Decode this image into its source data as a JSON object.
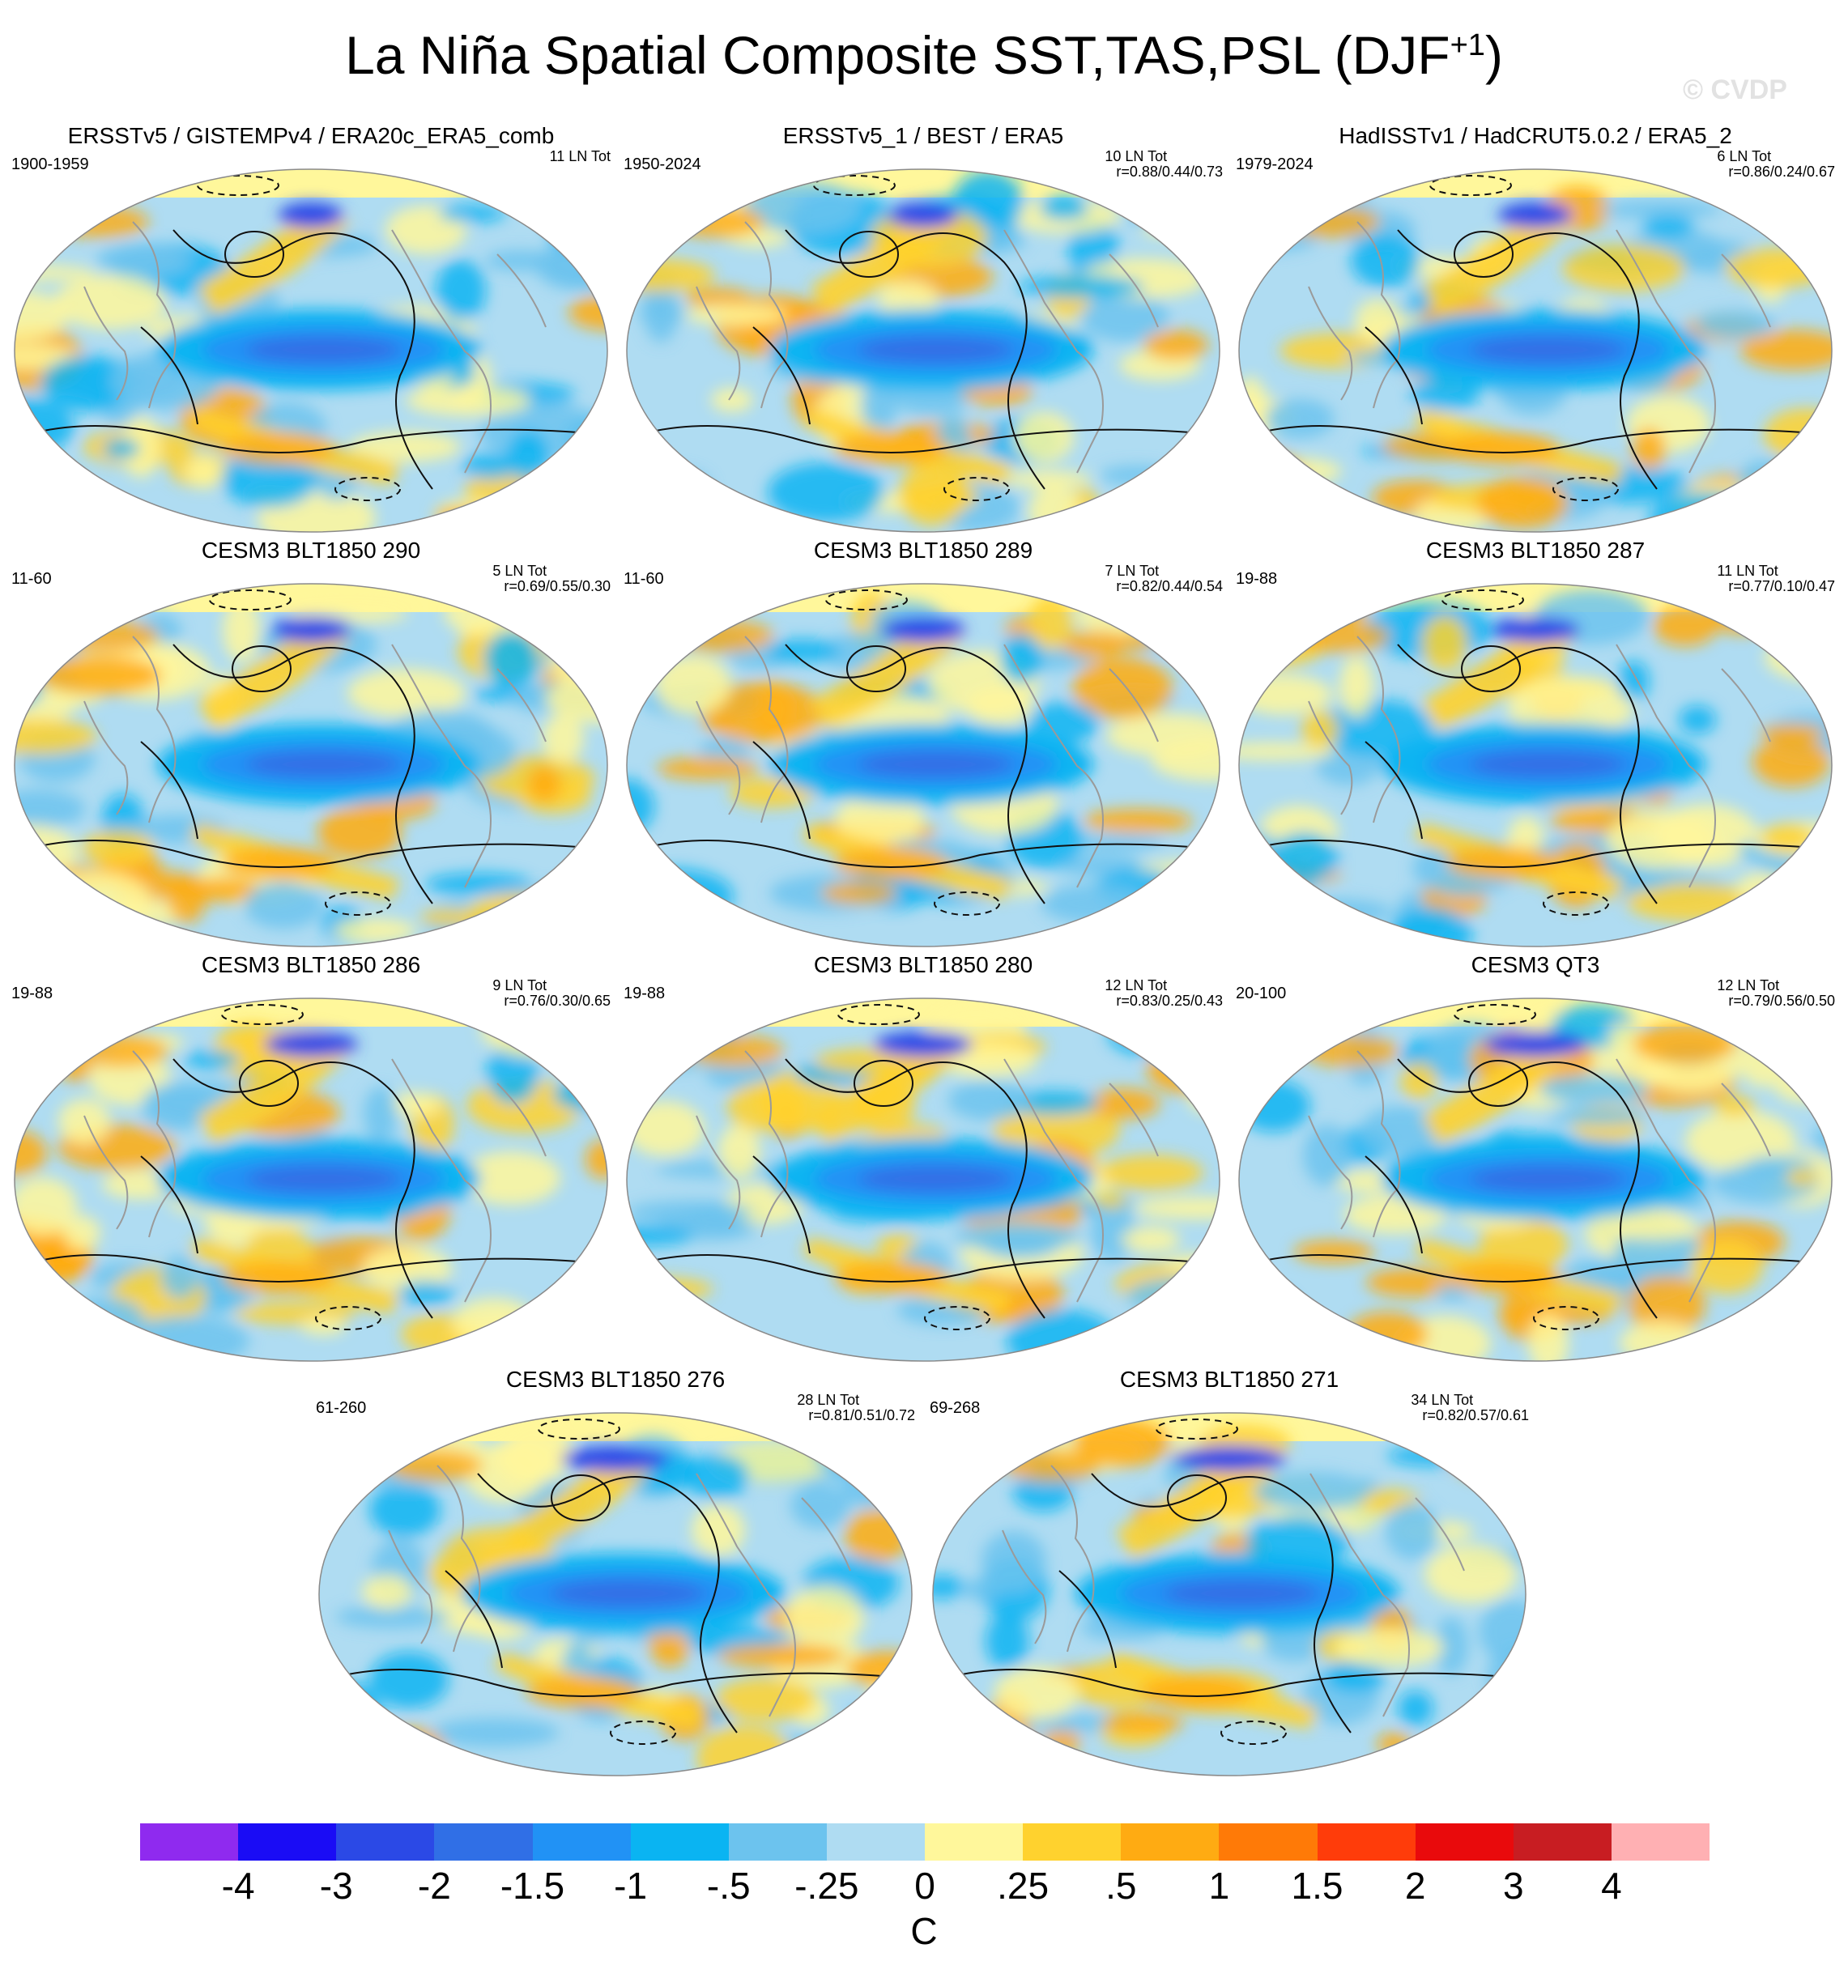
{
  "title": {
    "main": "La Niña Spatial Composite SST,TAS,PSL (DJF",
    "sup": "+1",
    "close": ")"
  },
  "watermark": "© CVDP",
  "panels": [
    {
      "title": "ERSSTv5 / GISTEMPv4 / ERA20c_ERA5_comb",
      "period": "1900-1959",
      "count": "11 LN Tot",
      "corr": ""
    },
    {
      "title": "ERSSTv5_1 / BEST / ERA5",
      "period": "1950-2024",
      "count": "10 LN Tot",
      "corr": "r=0.88/0.44/0.73"
    },
    {
      "title": "HadISSTv1 / HadCRUT5.0.2 / ERA5_2",
      "period": "1979-2024",
      "count": "6 LN Tot",
      "corr": "r=0.86/0.24/0.67"
    },
    {
      "title": "CESM3 BLT1850 290",
      "period": "11-60",
      "count": "5 LN Tot",
      "corr": "r=0.69/0.55/0.30"
    },
    {
      "title": "CESM3 BLT1850 289",
      "period": "11-60",
      "count": "7 LN Tot",
      "corr": "r=0.82/0.44/0.54"
    },
    {
      "title": "CESM3 BLT1850 287",
      "period": "19-88",
      "count": "11 LN Tot",
      "corr": "r=0.77/0.10/0.47"
    },
    {
      "title": "CESM3 BLT1850 286",
      "period": "19-88",
      "count": "9 LN Tot",
      "corr": "r=0.76/0.30/0.65"
    },
    {
      "title": "CESM3 BLT1850 280",
      "period": "19-88",
      "count": "12 LN Tot",
      "corr": "r=0.83/0.25/0.43"
    },
    {
      "title": "CESM3 QT3",
      "period": "20-100",
      "count": "12 LN Tot",
      "corr": "r=0.79/0.56/0.50"
    },
    {
      "title": "CESM3 BLT1850 276",
      "period": "61-260",
      "count": "28 LN Tot",
      "corr": "r=0.81/0.51/0.72"
    },
    {
      "title": "CESM3 BLT1850 271",
      "period": "69-268",
      "count": "34 LN Tot",
      "corr": "r=0.82/0.57/0.61"
    }
  ],
  "colorbar": {
    "colors": [
      "#8f2aef",
      "#1a0cf5",
      "#2b49e6",
      "#306fe6",
      "#2192f5",
      "#0ab4f2",
      "#6cc3ee",
      "#afdcf2",
      "#fff79b",
      "#ffd22e",
      "#ffab12",
      "#ff7a07",
      "#ff3c0a",
      "#e90a0c",
      "#c81d22",
      "#ffb0b3"
    ],
    "labels": [
      "-4",
      "-3",
      "-2",
      "-1.5",
      "-1",
      "-.5",
      "-.25",
      "0",
      ".25",
      ".5",
      "1",
      "1.5",
      "2",
      "3",
      "4"
    ],
    "unit": "C"
  }
}
